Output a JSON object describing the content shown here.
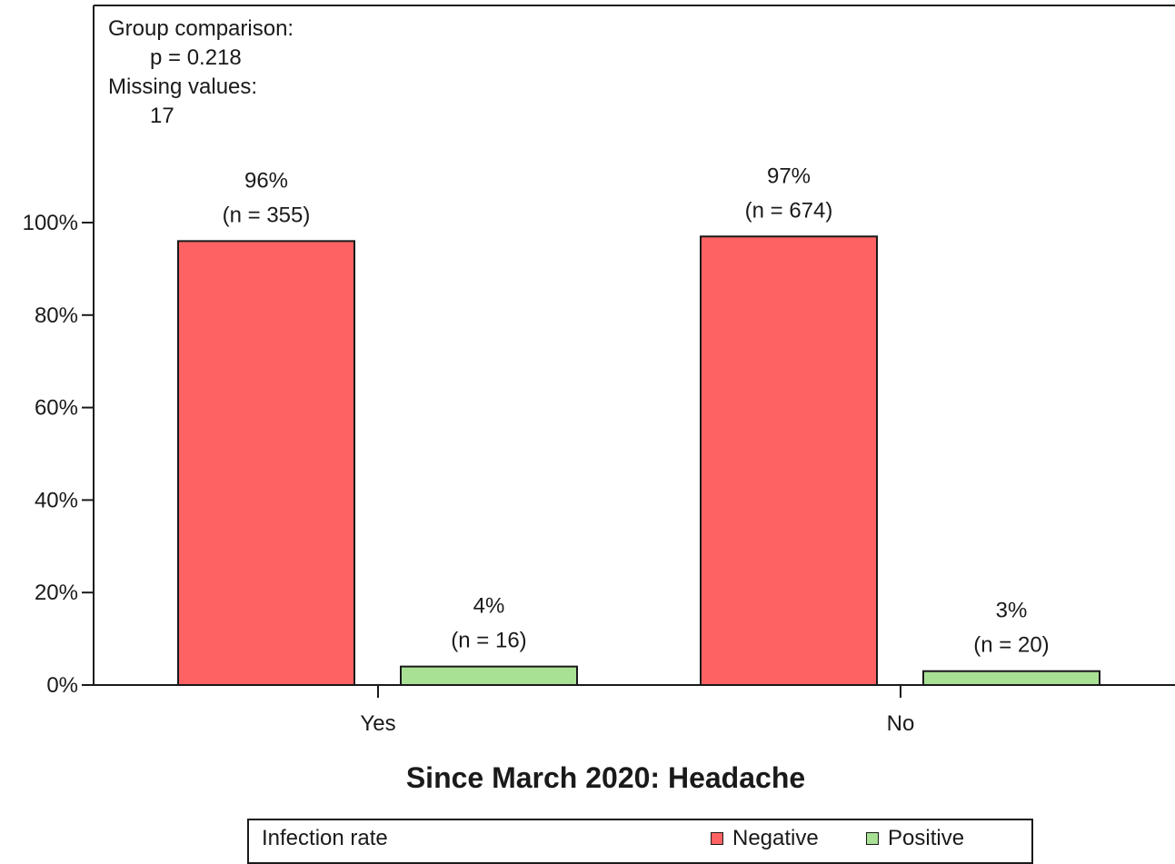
{
  "chart_data": {
    "type": "bar",
    "title": "Since March 2020: Headache",
    "categories": [
      "Yes",
      "No"
    ],
    "series": [
      {
        "name": "Negative",
        "values": [
          96,
          97
        ],
        "labels": [
          "96%",
          "97%"
        ],
        "n_labels": [
          "(n = 355)",
          "(n = 674)"
        ]
      },
      {
        "name": "Positive",
        "values": [
          4,
          3
        ],
        "labels": [
          "4%",
          "3%"
        ],
        "n_labels": [
          "(n = 16)",
          "(n = 20)"
        ]
      }
    ],
    "y_ticks": [
      "0%",
      "20%",
      "40%",
      "60%",
      "80%",
      "100%"
    ],
    "ylim": [
      0,
      100
    ],
    "grid": false,
    "legend_position": "bottom"
  },
  "stats": {
    "group_comparison_label": "Group comparison:",
    "p_value": "p = 0.218",
    "missing_label": "Missing values:",
    "missing_value": "17"
  },
  "legend": {
    "title": "Infection rate",
    "items": [
      "Negative",
      "Positive"
    ]
  },
  "colors": {
    "negative": "#ff6262",
    "positive": "#a8e094",
    "axis": "#1a1a1a"
  }
}
